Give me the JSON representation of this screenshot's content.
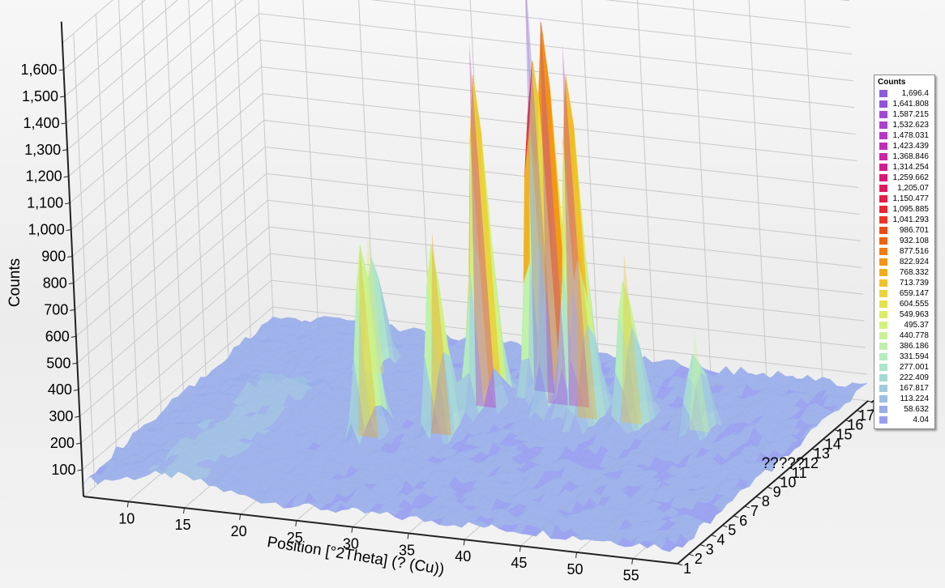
{
  "chart_data": {
    "type": "surface3d",
    "ylabel": "Counts",
    "xlabel": "Position [°2Theta] (? (Cu))",
    "zlabel": "?????",
    "y_ticks": [
      "100",
      "200",
      "300",
      "400",
      "500",
      "600",
      "700",
      "800",
      "900",
      "1,000",
      "1,100",
      "1,200",
      "1,300",
      "1,400",
      "1,500",
      "1,600"
    ],
    "x_ticks": [
      "10",
      "15",
      "20",
      "25",
      "30",
      "35",
      "40",
      "45",
      "50",
      "55"
    ],
    "z_ticks": [
      "1",
      "2",
      "3",
      "4",
      "5",
      "6",
      "7",
      "8",
      "9",
      "10",
      "11",
      "12",
      "13",
      "14",
      "15",
      "16",
      "17",
      "18"
    ],
    "x_range": [
      6,
      59
    ],
    "y_range": [
      0,
      1700
    ],
    "z_range": [
      1,
      18
    ],
    "peaks": [
      {
        "x": 31.0,
        "z": 12,
        "y": 1430
      },
      {
        "x": 34.2,
        "z": 14,
        "y": 1696.4
      },
      {
        "x": 36.4,
        "z": 13,
        "y": 1520
      },
      {
        "x": 38.3,
        "z": 13,
        "y": 1420
      },
      {
        "x": 40.0,
        "z": 12,
        "y": 760
      },
      {
        "x": 44.0,
        "z": 12,
        "y": 700
      },
      {
        "x": 24.5,
        "z": 8,
        "y": 780
      },
      {
        "x": 30.0,
        "z": 9,
        "y": 820
      },
      {
        "x": 19.0,
        "z": 14,
        "y": 580
      },
      {
        "x": 50.0,
        "z": 12,
        "y": 430
      }
    ],
    "legend": {
      "title": "Counts",
      "entries": [
        {
          "label": "1,696.4",
          "color": "#8a5ce0"
        },
        {
          "label": "1,641.808",
          "color": "#9453dc"
        },
        {
          "label": "1,587.215",
          "color": "#a149d6"
        },
        {
          "label": "1,532.623",
          "color": "#ad3fcf"
        },
        {
          "label": "1,478.031",
          "color": "#b935c5"
        },
        {
          "label": "1,423.439",
          "color": "#c22cb8"
        },
        {
          "label": "1,368.846",
          "color": "#cb23a6"
        },
        {
          "label": "1,314.254",
          "color": "#d31c91"
        },
        {
          "label": "1,259.662",
          "color": "#da1878"
        },
        {
          "label": "1,205.07",
          "color": "#e0185f"
        },
        {
          "label": "1,150.477",
          "color": "#e51d48"
        },
        {
          "label": "1,095.885",
          "color": "#e82734"
        },
        {
          "label": "1,041.293",
          "color": "#eb3623"
        },
        {
          "label": "986.701",
          "color": "#ee4a16"
        },
        {
          "label": "932.108",
          "color": "#f06110"
        },
        {
          "label": "877.516",
          "color": "#f27a0e"
        },
        {
          "label": "822.924",
          "color": "#f39412"
        },
        {
          "label": "768.332",
          "color": "#f2ad1b"
        },
        {
          "label": "713.739",
          "color": "#efc229"
        },
        {
          "label": "659.147",
          "color": "#ead43a"
        },
        {
          "label": "604.555",
          "color": "#e4e24f"
        },
        {
          "label": "549.963",
          "color": "#dcec66"
        },
        {
          "label": "495.37",
          "color": "#d2f27e"
        },
        {
          "label": "440.778",
          "color": "#c8f496"
        },
        {
          "label": "386.186",
          "color": "#bef2ab"
        },
        {
          "label": "331.594",
          "color": "#b5ecbd"
        },
        {
          "label": "277.001",
          "color": "#ade4ca"
        },
        {
          "label": "222.409",
          "color": "#a7d9d5"
        },
        {
          "label": "167.817",
          "color": "#a2ccdd"
        },
        {
          "label": "113.224",
          "color": "#9ebee4"
        },
        {
          "label": "58.632",
          "color": "#9aaeea"
        },
        {
          "label": "4.04",
          "color": "#979ef0"
        }
      ]
    }
  }
}
